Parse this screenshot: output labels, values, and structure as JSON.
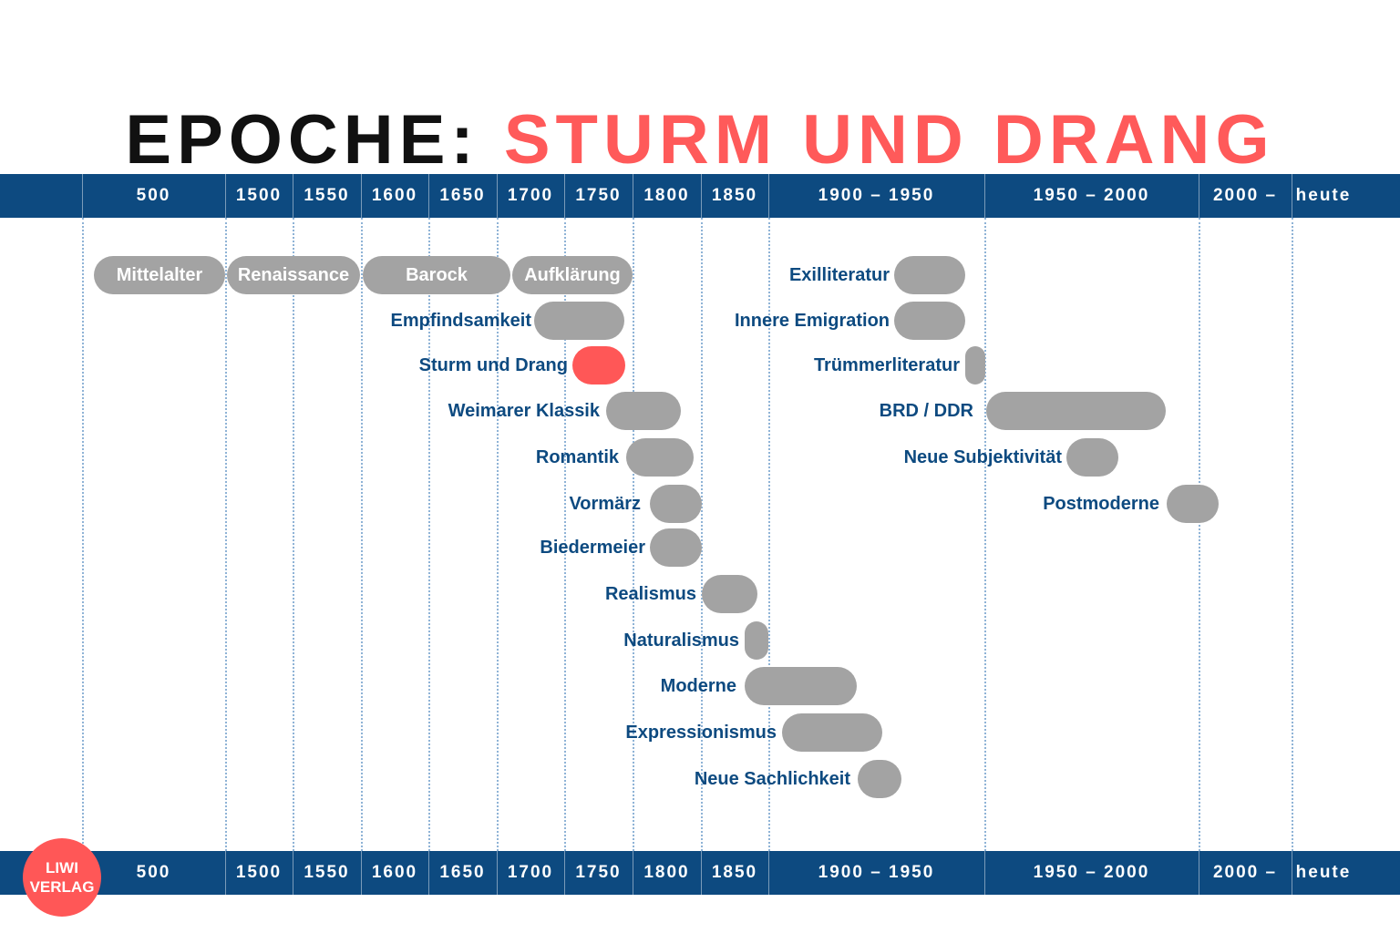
{
  "title": {
    "prefix": "EPOCHE:",
    "highlight": "STURM UND DRANG"
  },
  "colors": {
    "axis": "#0d4a80",
    "bar": "#a3a3a3",
    "accent": "#ff5757",
    "label": "#0d4a80"
  },
  "axis_ticks": [
    "500",
    "1500",
    "1550",
    "1600",
    "1650",
    "1700",
    "1750",
    "1800",
    "1850",
    "1900 – 1950",
    "1950 – 2000",
    "2000 –",
    "heute"
  ],
  "top_row_epochs": [
    "Mittelalter",
    "Renaissance",
    "Barock",
    "Aufklärung"
  ],
  "left_epochs": [
    "Empfindsamkeit",
    "Sturm und Drang",
    "Weimarer Klassik",
    "Romantik",
    "Vormärz",
    "Biedermeier",
    "Realismus",
    "Naturalismus",
    "Moderne",
    "Expressionismus",
    "Neue Sachlichkeit"
  ],
  "right_epochs": [
    "Exilliteratur",
    "Innere Emigration",
    "Trümmerliteratur",
    "BRD / DDR",
    "Neue Subjektivität",
    "Postmoderne"
  ],
  "highlighted_epoch": "Sturm und Drang",
  "logo": {
    "line1": "LIWI",
    "line2": "VERLAG"
  }
}
